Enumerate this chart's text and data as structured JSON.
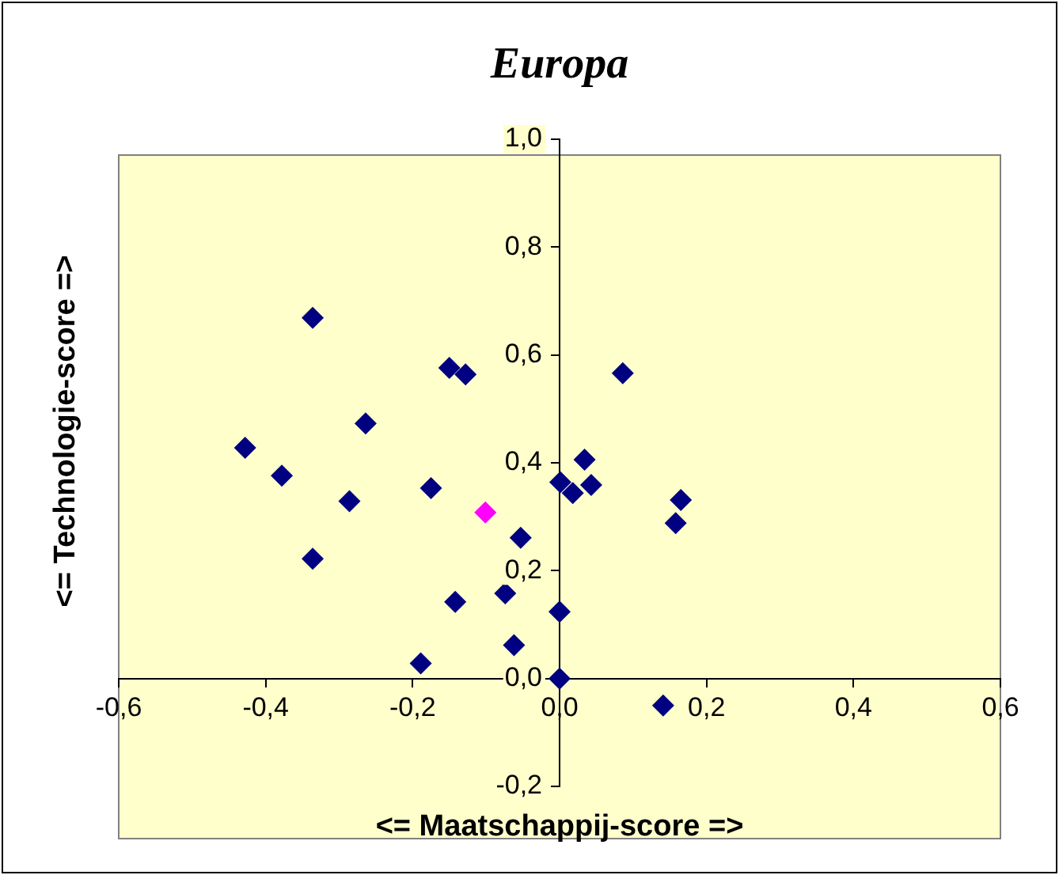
{
  "chart_data": {
    "type": "scatter",
    "title": "Europa",
    "xlabel": "<= Maatschappij-score =>",
    "ylabel": "<= Technologie-score =>",
    "xlim": [
      -0.6,
      0.6
    ],
    "ylim": [
      -0.2,
      1.0
    ],
    "xticks": [
      {
        "value": -0.6,
        "label": "-0,6"
      },
      {
        "value": -0.4,
        "label": "-0,4"
      },
      {
        "value": -0.2,
        "label": "-0,2"
      },
      {
        "value": 0,
        "label": "0,0"
      },
      {
        "value": 0.2,
        "label": "0,2"
      },
      {
        "value": 0.4,
        "label": "0,4"
      },
      {
        "value": 0.6,
        "label": "0,6"
      }
    ],
    "yticks": [
      {
        "value": -0.2,
        "label": "-0,2"
      },
      {
        "value": 0,
        "label": "0,0"
      },
      {
        "value": 0.2,
        "label": "0,2"
      },
      {
        "value": 0.4,
        "label": "0,4"
      },
      {
        "value": 0.6,
        "label": "0,6"
      },
      {
        "value": 0.8,
        "label": "0,8"
      },
      {
        "value": 1.0,
        "label": "1,0"
      }
    ],
    "grid": false,
    "legend": false,
    "marker": "diamond",
    "series": [
      {
        "color": "#000080",
        "x": [
          -0.336,
          -0.15,
          -0.128,
          -0.264,
          -0.428,
          -0.378,
          -0.286,
          -0.175,
          -0.053,
          -0.336,
          -0.142,
          -0.074,
          -0.189,
          -0.062,
          0.0,
          0.0,
          0.001,
          0.018,
          0.034,
          0.043,
          0.086,
          0.165,
          0.158,
          0.141
        ],
        "values": [
          0.669,
          0.576,
          0.564,
          0.473,
          0.428,
          0.376,
          0.329,
          0.353,
          0.261,
          0.222,
          0.142,
          0.158,
          0.028,
          0.062,
          0.124,
          0.0,
          0.364,
          0.344,
          0.406,
          0.359,
          0.566,
          0.331,
          0.288,
          -0.05
        ]
      },
      {
        "color": "#ff00ff",
        "x": [
          -0.101
        ],
        "values": [
          0.308
        ]
      }
    ]
  }
}
